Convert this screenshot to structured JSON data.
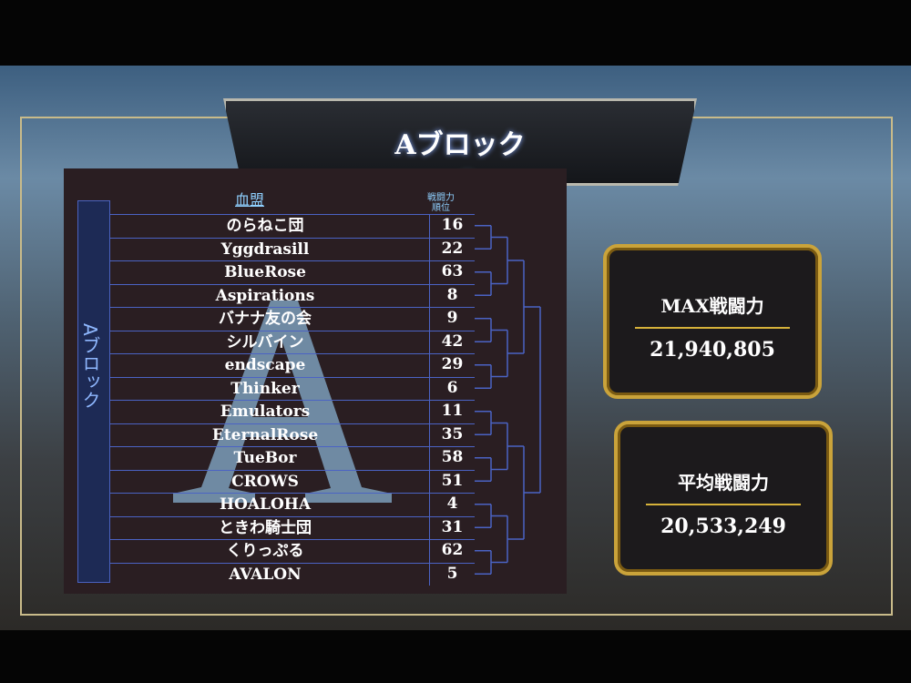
{
  "title": "Aブロック",
  "side_label": "Aブロック",
  "watermark": "A",
  "columns": {
    "clan": "血盟",
    "rank_line1": "戦闘力",
    "rank_line2": "順位"
  },
  "teams": [
    {
      "name": "のらねこ団",
      "rank": "16"
    },
    {
      "name": "Yggdrasill",
      "rank": "22"
    },
    {
      "name": "BlueRose",
      "rank": "63"
    },
    {
      "name": "Aspirations",
      "rank": "8"
    },
    {
      "name": "バナナ友の会",
      "rank": "9"
    },
    {
      "name": "シルバイン",
      "rank": "42"
    },
    {
      "name": "endscape",
      "rank": "29"
    },
    {
      "name": "Thinker",
      "rank": "6"
    },
    {
      "name": "Emulators",
      "rank": "11"
    },
    {
      "name": "EternalRose",
      "rank": "35"
    },
    {
      "name": "TueBor",
      "rank": "58"
    },
    {
      "name": "CROWS",
      "rank": "51"
    },
    {
      "name": "HOALOHA",
      "rank": "4"
    },
    {
      "name": "ときわ騎士団",
      "rank": "31"
    },
    {
      "name": "くりっぷる",
      "rank": "62"
    },
    {
      "name": "AVALON",
      "rank": "5"
    }
  ],
  "max_power": {
    "label": "MAX戦闘力",
    "value": "21,940,805"
  },
  "avg_power": {
    "label": "平均戦闘力",
    "value": "20,533,249"
  },
  "colors": {
    "accent_blue": "#4b63c4",
    "gold": "#caa33a",
    "header_blue": "#8fd0ff"
  }
}
